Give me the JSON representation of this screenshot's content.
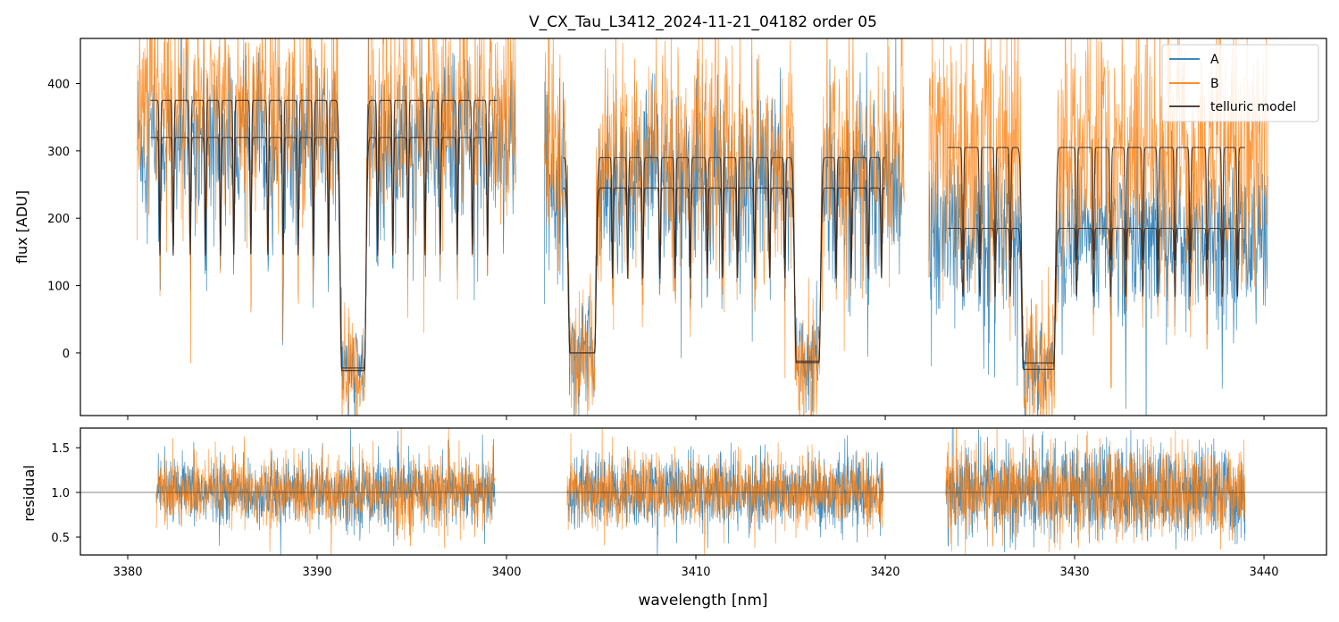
{
  "chart_data": [
    {
      "type": "line",
      "title": "V_CX_Tau_L3412_2024-11-21_04182  order 05",
      "xlabel": "",
      "ylabel": "flux [ADU]",
      "xlim": [
        3377.5,
        3443.3
      ],
      "ylim": [
        -93,
        467
      ],
      "yticks": [
        0,
        100,
        200,
        300,
        400
      ],
      "xticks": [
        3380,
        3390,
        3400,
        3410,
        3420,
        3430,
        3440
      ],
      "xtick_labels_visible": false,
      "legend": {
        "placement": "top-right",
        "entries": [
          {
            "label": "A",
            "color": "#1f77b4"
          },
          {
            "label": "B",
            "color": "#ff7f0e"
          },
          {
            "label": "telluric model",
            "color": "#3a2a22"
          }
        ]
      },
      "segments": [
        {
          "x_start": 3380.5,
          "x_end": 3400.5,
          "continuum_A": 320,
          "continuum_B": 370,
          "noise_A": 55,
          "noise_B": 75
        },
        {
          "x_start": 3402.0,
          "x_end": 3421.0,
          "continuum_A": 265,
          "continuum_B": 300,
          "noise_A": 60,
          "noise_B": 75
        },
        {
          "x_start": 3422.3,
          "x_end": 3440.2,
          "continuum_A": 180,
          "continuum_B": 300,
          "noise_A": 50,
          "noise_B": 90
        }
      ],
      "model_segments": [
        {
          "x_start": 3381.2,
          "x_end": 3399.5,
          "level_A": 320,
          "level_B": 375
        },
        {
          "x_start": 3403.0,
          "x_end": 3420.0,
          "level_A": 245,
          "level_B": 290
        },
        {
          "x_start": 3423.3,
          "x_end": 3439.0,
          "level_A": 185,
          "level_B": 305
        }
      ],
      "absorption_bands": [
        {
          "center": 3391.9,
          "width": 1.2,
          "depth": 1.07
        },
        {
          "center": 3404.0,
          "width": 1.3,
          "depth": 1.0
        },
        {
          "center": 3415.9,
          "width": 1.2,
          "depth": 1.05
        },
        {
          "center": 3428.1,
          "width": 1.6,
          "depth": 1.08
        }
      ],
      "absorption_lines": [
        3381.7,
        3382.4,
        3383.3,
        3384.1,
        3384.9,
        3385.6,
        3386.5,
        3387.4,
        3388.2,
        3389.0,
        3389.8,
        3390.6,
        3393.2,
        3394.0,
        3394.8,
        3395.7,
        3396.5,
        3397.4,
        3398.2,
        3399.0,
        3405.6,
        3406.4,
        3407.2,
        3408.1,
        3408.9,
        3409.7,
        3410.6,
        3411.4,
        3412.2,
        3413.1,
        3413.9,
        3414.7,
        3417.4,
        3418.2,
        3419.1,
        3419.8,
        3424.1,
        3425.0,
        3425.8,
        3426.6,
        3430.1,
        3431.0,
        3431.9,
        3432.7,
        3433.6,
        3434.4,
        3435.3,
        3436.1,
        3437.0,
        3437.8,
        3438.6
      ],
      "series": [
        {
          "name": "A",
          "color": "#1f77b4"
        },
        {
          "name": "B",
          "color": "#ff7f0e"
        },
        {
          "name": "telluric model",
          "color": "#3a2a22"
        }
      ]
    },
    {
      "type": "line",
      "title": "",
      "xlabel": "wavelength [nm]",
      "ylabel": "residual",
      "xlim": [
        3377.5,
        3443.3
      ],
      "ylim": [
        0.3,
        1.72
      ],
      "yticks": [
        0.5,
        1.0,
        1.5
      ],
      "ytick_labels": [
        "0.5",
        "1.0",
        "1.5"
      ],
      "xticks": [
        3380,
        3390,
        3400,
        3410,
        3420,
        3430,
        3440
      ],
      "reference_line": 1.0,
      "segments": [
        {
          "x_start": 3381.5,
          "x_end": 3399.4,
          "noise_A": 0.18,
          "noise_B": 0.2
        },
        {
          "x_start": 3403.2,
          "x_end": 3419.9,
          "noise_A": 0.2,
          "noise_B": 0.2
        },
        {
          "x_start": 3423.2,
          "x_end": 3439.0,
          "noise_A": 0.25,
          "noise_B": 0.25
        }
      ],
      "series": [
        {
          "name": "A",
          "color": "#1f77b4"
        },
        {
          "name": "B",
          "color": "#ff7f0e"
        }
      ]
    }
  ]
}
